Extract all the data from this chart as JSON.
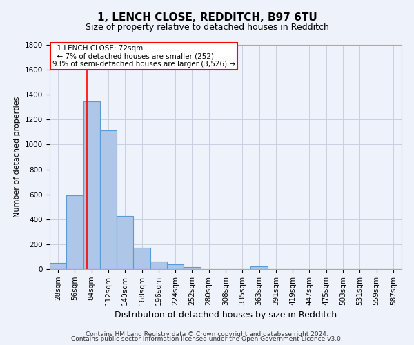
{
  "title": "1, LENCH CLOSE, REDDITCH, B97 6TU",
  "subtitle": "Size of property relative to detached houses in Redditch",
  "xlabel": "Distribution of detached houses by size in Redditch",
  "ylabel": "Number of detached properties",
  "footer_line1": "Contains HM Land Registry data © Crown copyright and database right 2024.",
  "footer_line2": "Contains public sector information licensed under the Open Government Licence v3.0.",
  "bin_labels": [
    "28sqm",
    "56sqm",
    "84sqm",
    "112sqm",
    "140sqm",
    "168sqm",
    "196sqm",
    "224sqm",
    "252sqm",
    "280sqm",
    "308sqm",
    "335sqm",
    "363sqm",
    "391sqm",
    "419sqm",
    "447sqm",
    "475sqm",
    "503sqm",
    "531sqm",
    "559sqm",
    "587sqm"
  ],
  "bar_values": [
    50,
    595,
    1345,
    1115,
    425,
    170,
    60,
    38,
    18,
    0,
    0,
    0,
    20,
    0,
    0,
    0,
    0,
    0,
    0,
    0,
    0
  ],
  "bar_color": "#aec6e8",
  "bar_edge_color": "#5b9bd5",
  "ylim": [
    0,
    1800
  ],
  "yticks": [
    0,
    200,
    400,
    600,
    800,
    1000,
    1200,
    1400,
    1600,
    1800
  ],
  "vline_x_index": 1.72,
  "vline_color": "red",
  "annotation_line1": "  1 LENCH CLOSE: 72sqm",
  "annotation_line2": "  ← 7% of detached houses are smaller (252)",
  "annotation_line3": "93% of semi-detached houses are larger (3,526) →",
  "annotation_box_color": "white",
  "annotation_border_color": "red",
  "background_color": "#eef2fb",
  "grid_color": "#c8cfe0",
  "title_fontsize": 11,
  "subtitle_fontsize": 9,
  "ylabel_fontsize": 8,
  "xlabel_fontsize": 9,
  "tick_fontsize": 7.5,
  "footer_fontsize": 6.5
}
